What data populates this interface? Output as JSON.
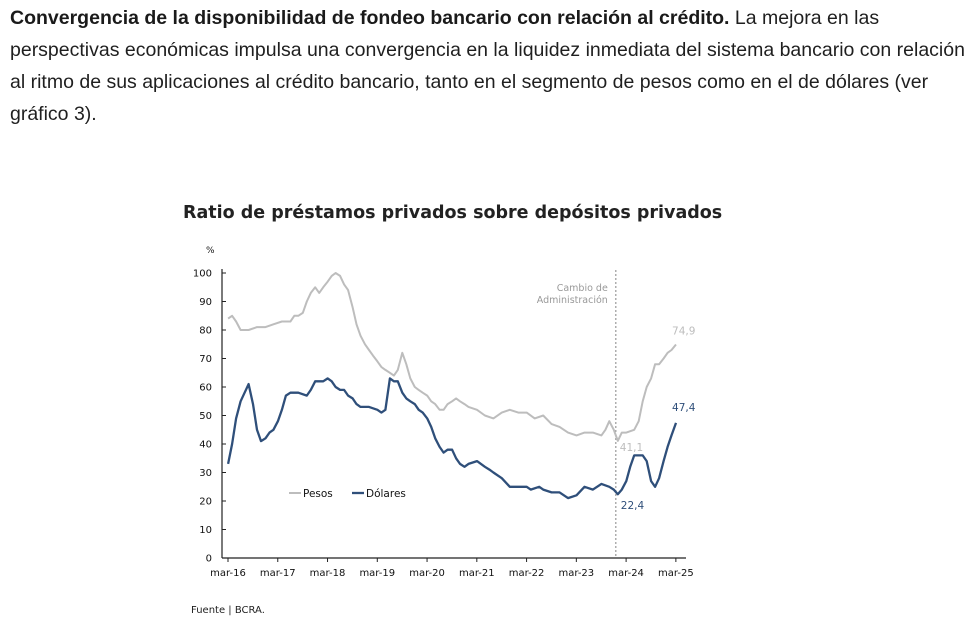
{
  "paragraph": {
    "lead": "Convergencia de la disponibilidad de fondeo bancario con relación al crédito.",
    "body": " La mejora en las perspectivas económicas impulsa una convergencia en la liquidez inmediata del sistema bancario con relación al ritmo de sus aplicaciones al crédito bancario, tanto en el segmento de pesos como en el de dólares (ver gráfico 3)."
  },
  "source": "Fuente | BCRA.",
  "chart_data": {
    "type": "line",
    "title": "Ratio de préstamos privados sobre depósitos privados",
    "ylabel": "%",
    "ylim": [
      0,
      100
    ],
    "yticks": [
      0,
      10,
      20,
      30,
      40,
      50,
      60,
      70,
      80,
      90,
      100
    ],
    "xlim": [
      2016.167,
      2025.25
    ],
    "xticks": [
      {
        "label": "mar-16",
        "x": 2016.167
      },
      {
        "label": "mar-17",
        "x": 2017.167
      },
      {
        "label": "mar-18",
        "x": 2018.167
      },
      {
        "label": "mar-19",
        "x": 2019.167
      },
      {
        "label": "mar-20",
        "x": 2020.167
      },
      {
        "label": "mar-21",
        "x": 2021.167
      },
      {
        "label": "mar-22",
        "x": 2022.167
      },
      {
        "label": "mar-23",
        "x": 2023.167
      },
      {
        "label": "mar-24",
        "x": 2024.167
      },
      {
        "label": "mar-25",
        "x": 2025.167
      }
    ],
    "legend_position": "lower-left",
    "series": [
      {
        "name": "Pesos",
        "color": "#bdbdbd",
        "points": [
          [
            2016.17,
            84
          ],
          [
            2016.25,
            85
          ],
          [
            2016.33,
            83
          ],
          [
            2016.42,
            80
          ],
          [
            2016.58,
            80
          ],
          [
            2016.75,
            81
          ],
          [
            2016.92,
            81
          ],
          [
            2017.08,
            82
          ],
          [
            2017.25,
            83
          ],
          [
            2017.42,
            83
          ],
          [
            2017.5,
            85
          ],
          [
            2017.58,
            85
          ],
          [
            2017.67,
            86
          ],
          [
            2017.75,
            90
          ],
          [
            2017.83,
            93
          ],
          [
            2017.92,
            95
          ],
          [
            2018.0,
            93
          ],
          [
            2018.08,
            95
          ],
          [
            2018.17,
            97
          ],
          [
            2018.25,
            99
          ],
          [
            2018.33,
            100
          ],
          [
            2018.42,
            99
          ],
          [
            2018.5,
            96
          ],
          [
            2018.58,
            94
          ],
          [
            2018.67,
            88
          ],
          [
            2018.75,
            82
          ],
          [
            2018.83,
            78
          ],
          [
            2018.92,
            75
          ],
          [
            2019.0,
            73
          ],
          [
            2019.08,
            71
          ],
          [
            2019.17,
            69
          ],
          [
            2019.25,
            67
          ],
          [
            2019.33,
            66
          ],
          [
            2019.42,
            65
          ],
          [
            2019.5,
            64
          ],
          [
            2019.58,
            66
          ],
          [
            2019.67,
            72
          ],
          [
            2019.75,
            68
          ],
          [
            2019.83,
            63
          ],
          [
            2019.92,
            60
          ],
          [
            2020.0,
            59
          ],
          [
            2020.08,
            58
          ],
          [
            2020.17,
            57
          ],
          [
            2020.25,
            55
          ],
          [
            2020.33,
            54
          ],
          [
            2020.42,
            52
          ],
          [
            2020.5,
            52
          ],
          [
            2020.58,
            54
          ],
          [
            2020.67,
            55
          ],
          [
            2020.75,
            56
          ],
          [
            2020.83,
            55
          ],
          [
            2020.92,
            54
          ],
          [
            2021.0,
            53
          ],
          [
            2021.17,
            52
          ],
          [
            2021.33,
            50
          ],
          [
            2021.5,
            49
          ],
          [
            2021.67,
            51
          ],
          [
            2021.83,
            52
          ],
          [
            2022.0,
            51
          ],
          [
            2022.17,
            51
          ],
          [
            2022.33,
            49
          ],
          [
            2022.5,
            50
          ],
          [
            2022.67,
            47
          ],
          [
            2022.83,
            46
          ],
          [
            2023.0,
            44
          ],
          [
            2023.17,
            43
          ],
          [
            2023.33,
            44
          ],
          [
            2023.5,
            44
          ],
          [
            2023.67,
            43
          ],
          [
            2023.75,
            45
          ],
          [
            2023.83,
            48
          ],
          [
            2023.92,
            45
          ],
          [
            2024.0,
            41.1
          ],
          [
            2024.08,
            44
          ],
          [
            2024.17,
            44
          ],
          [
            2024.33,
            45
          ],
          [
            2024.42,
            48
          ],
          [
            2024.5,
            55
          ],
          [
            2024.58,
            60
          ],
          [
            2024.67,
            63
          ],
          [
            2024.75,
            68
          ],
          [
            2024.83,
            68
          ],
          [
            2024.92,
            70
          ],
          [
            2025.0,
            72
          ],
          [
            2025.08,
            73
          ],
          [
            2025.17,
            74.9
          ]
        ]
      },
      {
        "name": "Dólares",
        "color": "#2f4f7a",
        "points": [
          [
            2016.17,
            33
          ],
          [
            2016.25,
            40
          ],
          [
            2016.33,
            49
          ],
          [
            2016.42,
            55
          ],
          [
            2016.5,
            58
          ],
          [
            2016.58,
            61
          ],
          [
            2016.67,
            54
          ],
          [
            2016.75,
            45
          ],
          [
            2016.83,
            41
          ],
          [
            2016.92,
            42
          ],
          [
            2017.0,
            44
          ],
          [
            2017.08,
            45
          ],
          [
            2017.17,
            48
          ],
          [
            2017.25,
            52
          ],
          [
            2017.33,
            57
          ],
          [
            2017.42,
            58
          ],
          [
            2017.58,
            58
          ],
          [
            2017.75,
            57
          ],
          [
            2017.83,
            59
          ],
          [
            2017.92,
            62
          ],
          [
            2018.0,
            62
          ],
          [
            2018.08,
            62
          ],
          [
            2018.17,
            63
          ],
          [
            2018.25,
            62
          ],
          [
            2018.33,
            60
          ],
          [
            2018.42,
            59
          ],
          [
            2018.5,
            59
          ],
          [
            2018.58,
            57
          ],
          [
            2018.67,
            56
          ],
          [
            2018.75,
            54
          ],
          [
            2018.83,
            53
          ],
          [
            2018.92,
            53
          ],
          [
            2019.0,
            53
          ],
          [
            2019.17,
            52
          ],
          [
            2019.25,
            51
          ],
          [
            2019.33,
            52
          ],
          [
            2019.42,
            63
          ],
          [
            2019.5,
            62
          ],
          [
            2019.58,
            62
          ],
          [
            2019.67,
            58
          ],
          [
            2019.75,
            56
          ],
          [
            2019.83,
            55
          ],
          [
            2019.92,
            54
          ],
          [
            2020.0,
            52
          ],
          [
            2020.08,
            51
          ],
          [
            2020.17,
            49
          ],
          [
            2020.25,
            46
          ],
          [
            2020.33,
            42
          ],
          [
            2020.42,
            39
          ],
          [
            2020.5,
            37
          ],
          [
            2020.58,
            38
          ],
          [
            2020.67,
            38
          ],
          [
            2020.75,
            35
          ],
          [
            2020.83,
            33
          ],
          [
            2020.92,
            32
          ],
          [
            2021.0,
            33
          ],
          [
            2021.17,
            34
          ],
          [
            2021.33,
            32
          ],
          [
            2021.42,
            31
          ],
          [
            2021.5,
            30
          ],
          [
            2021.67,
            28
          ],
          [
            2021.83,
            25
          ],
          [
            2022.0,
            25
          ],
          [
            2022.17,
            25
          ],
          [
            2022.25,
            24
          ],
          [
            2022.42,
            25
          ],
          [
            2022.5,
            24
          ],
          [
            2022.67,
            23
          ],
          [
            2022.83,
            23
          ],
          [
            2023.0,
            21
          ],
          [
            2023.17,
            22
          ],
          [
            2023.33,
            25
          ],
          [
            2023.5,
            24
          ],
          [
            2023.67,
            26
          ],
          [
            2023.83,
            25
          ],
          [
            2023.92,
            24
          ],
          [
            2024.0,
            22.4
          ],
          [
            2024.08,
            24
          ],
          [
            2024.17,
            27
          ],
          [
            2024.25,
            32
          ],
          [
            2024.33,
            36
          ],
          [
            2024.42,
            36
          ],
          [
            2024.5,
            36
          ],
          [
            2024.58,
            34
          ],
          [
            2024.67,
            27
          ],
          [
            2024.75,
            25
          ],
          [
            2024.83,
            28
          ],
          [
            2024.92,
            34
          ],
          [
            2025.0,
            39
          ],
          [
            2025.08,
            43
          ],
          [
            2025.17,
            47.4
          ]
        ]
      }
    ],
    "annotations": [
      {
        "text": "Cambio de",
        "x": 2023.96
      },
      {
        "text": "Administración",
        "x": 2023.96
      }
    ],
    "vline": {
      "x": 2023.96
    },
    "data_labels": [
      {
        "text": "74,9",
        "series": 0,
        "x": 2025.17,
        "y": 74.9
      },
      {
        "text": "47,4",
        "series": 1,
        "x": 2025.17,
        "y": 47.4
      },
      {
        "text": "41,1",
        "series": 0,
        "x": 2024.0,
        "y": 41.1
      },
      {
        "text": "22,4",
        "series": 1,
        "x": 2024.0,
        "y": 22.4
      }
    ]
  }
}
